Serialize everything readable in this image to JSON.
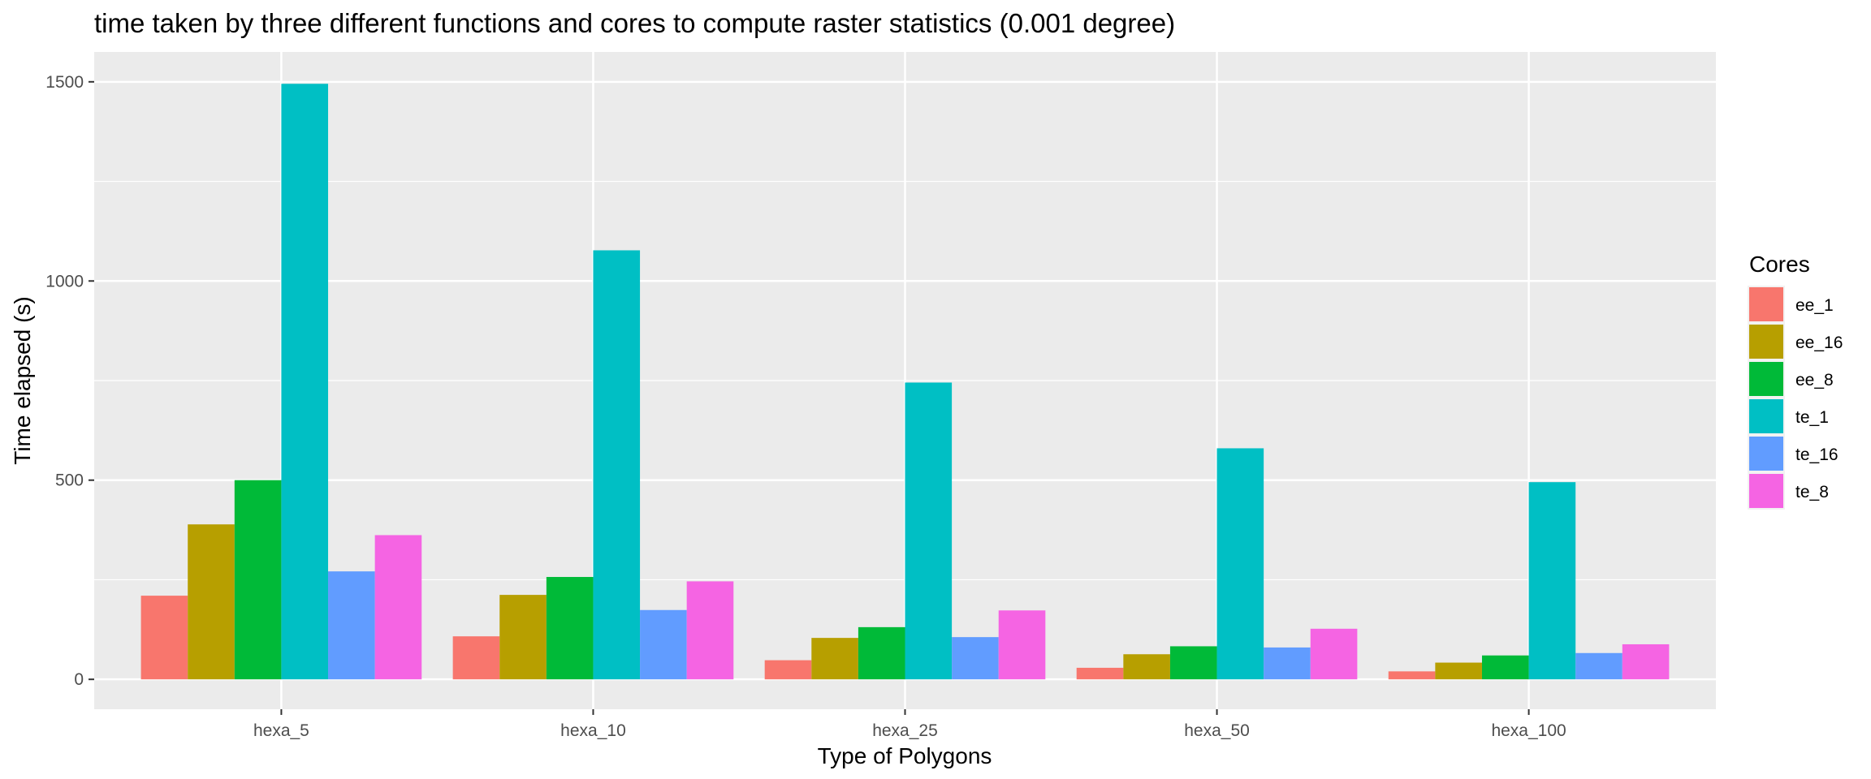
{
  "chart_data": {
    "type": "bar",
    "title": "time taken by three different functions and cores to compute raster statistics (0.001 degree)",
    "xlabel": "Type of Polygons",
    "ylabel": "Time elapsed (s)",
    "categories": [
      "hexa_5",
      "hexa_10",
      "hexa_25",
      "hexa_50",
      "hexa_100"
    ],
    "ylim": [
      -75,
      1575
    ],
    "yticks": [
      0,
      500,
      1000,
      1500
    ],
    "grid": true,
    "legend": {
      "title": "Cores",
      "placement": "right"
    },
    "series": [
      {
        "name": "ee_1",
        "color": "#F8766D",
        "values": [
          210,
          108,
          48,
          29,
          20
        ]
      },
      {
        "name": "ee_16",
        "color": "#B79F00",
        "values": [
          389,
          212,
          104,
          63,
          42
        ]
      },
      {
        "name": "ee_8",
        "color": "#00BA38",
        "values": [
          500,
          257,
          131,
          83,
          60
        ]
      },
      {
        "name": "te_1",
        "color": "#00BFC4",
        "values": [
          1495,
          1077,
          745,
          580,
          495
        ]
      },
      {
        "name": "te_16",
        "color": "#619CFF",
        "values": [
          271,
          174,
          106,
          80,
          66
        ]
      },
      {
        "name": "te_8",
        "color": "#F564E3",
        "values": [
          362,
          246,
          173,
          127,
          88
        ]
      }
    ]
  }
}
